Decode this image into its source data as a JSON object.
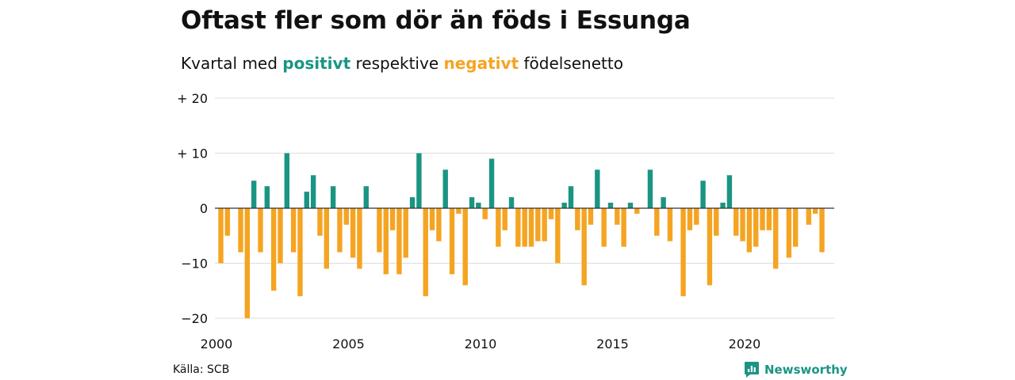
{
  "header": {
    "title": "Oftast fler som dör än föds i Essunga",
    "subtitle_prefix": "Kvartal med",
    "subtitle_positive": "positivt",
    "subtitle_middle": "respektive",
    "subtitle_negative": "negativt",
    "subtitle_suffix": "födelsenetto"
  },
  "footer": {
    "source": "Källa: SCB",
    "brand": "Newsworthy"
  },
  "colors": {
    "positive": "#1a9584",
    "negative": "#f5a422",
    "grid": "#dddddd",
    "zero_line": "#333333"
  },
  "chart_data": {
    "type": "bar",
    "x_start": "2000 Q1",
    "x_frequency": "quarterly",
    "x_ticks": [
      "2000",
      "2005",
      "2010",
      "2015",
      "2020"
    ],
    "y_ticks": [
      "+ 20",
      "+ 10",
      "0",
      "−10",
      "−20"
    ],
    "ylim": [
      -20,
      20
    ],
    "grid": true,
    "values": [
      -10,
      -5,
      0,
      -8,
      -20,
      5,
      -8,
      4,
      -15,
      -10,
      10,
      -8,
      -16,
      3,
      6,
      -5,
      -11,
      4,
      -8,
      -3,
      -9,
      -11,
      4,
      0,
      -8,
      -12,
      -4,
      -12,
      -9,
      2,
      10,
      -16,
      -4,
      -6,
      7,
      -12,
      -1,
      -14,
      2,
      1,
      -2,
      9,
      -7,
      -4,
      2,
      -7,
      -7,
      -7,
      -6,
      -6,
      -2,
      -10,
      1,
      4,
      -4,
      -14,
      -3,
      7,
      -7,
      1,
      -3,
      -7,
      1,
      -1,
      0,
      7,
      -5,
      2,
      -6,
      0,
      -16,
      -4,
      -3,
      5,
      -14,
      -5,
      1,
      6,
      -5,
      -6,
      -8,
      -7,
      -4,
      -4,
      -11,
      0,
      -9,
      -7,
      0,
      -3,
      -1,
      -8
    ]
  }
}
